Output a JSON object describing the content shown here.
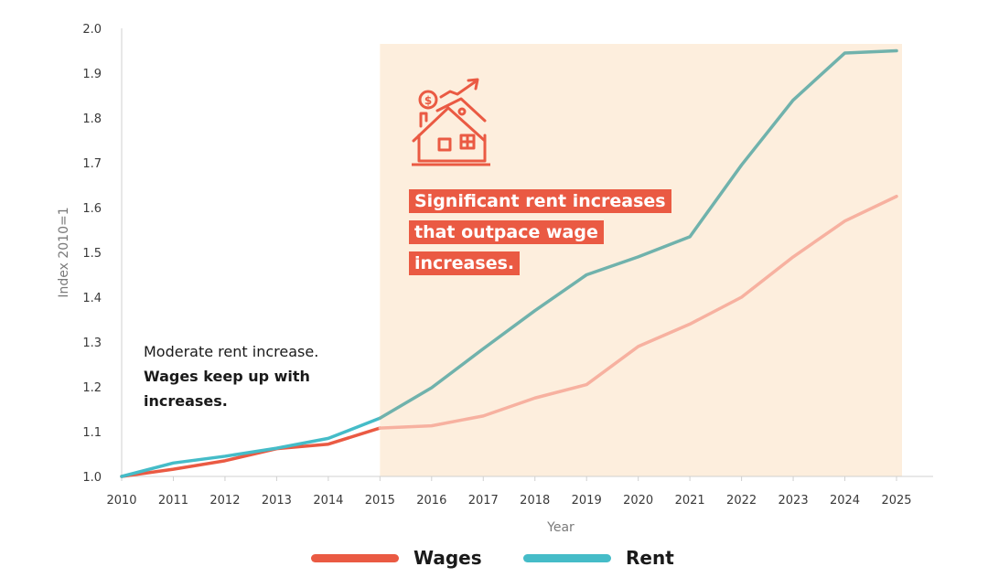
{
  "chart_data": {
    "type": "line",
    "title": "",
    "xlabel": "Year",
    "ylabel": "Index 2010=1",
    "x": [
      2010,
      2011,
      2012,
      2013,
      2014,
      2015,
      2016,
      2017,
      2018,
      2019,
      2020,
      2021,
      2022,
      2023,
      2024,
      2025
    ],
    "ylim": [
      1.0,
      2.0
    ],
    "yticks": [
      "1.0",
      "1.1",
      "1.2",
      "1.3",
      "1.4",
      "1.5",
      "1.6",
      "1.7",
      "1.8",
      "1.9",
      "2.0"
    ],
    "series": [
      {
        "name": "Wages",
        "color": "#ea5a43",
        "values": [
          1.0,
          1.016,
          1.035,
          1.062,
          1.072,
          1.108,
          1.113,
          1.135,
          1.175,
          1.205,
          1.29,
          1.34,
          1.4,
          1.49,
          1.57,
          1.625
        ]
      },
      {
        "name": "Rent",
        "color": "#45bcc8",
        "values": [
          1.0,
          1.03,
          1.045,
          1.063,
          1.085,
          1.13,
          1.198,
          1.285,
          1.37,
          1.45,
          1.49,
          1.535,
          1.695,
          1.84,
          1.945,
          1.95
        ]
      }
    ],
    "highlight_range": [
      2015,
      2025
    ],
    "legend_position": "bottom",
    "grid": false
  },
  "annotations": {
    "left_normal": "Moderate rent increase.",
    "left_bold": "Wages keep up with increases.",
    "callout_lines": [
      "Significant rent increases",
      "that outpace wage",
      "increases."
    ]
  },
  "legend": {
    "items": [
      {
        "label": "Wages",
        "color": "#ea5a43"
      },
      {
        "label": "Rent",
        "color": "#45bcc8"
      }
    ]
  },
  "icon": "house-rising-rent-icon",
  "colors": {
    "highlight": "#fdeedd",
    "wages_faded": "#f7b1a0",
    "rent_faded": "#70b2ac",
    "accent": "#ea5a43"
  }
}
